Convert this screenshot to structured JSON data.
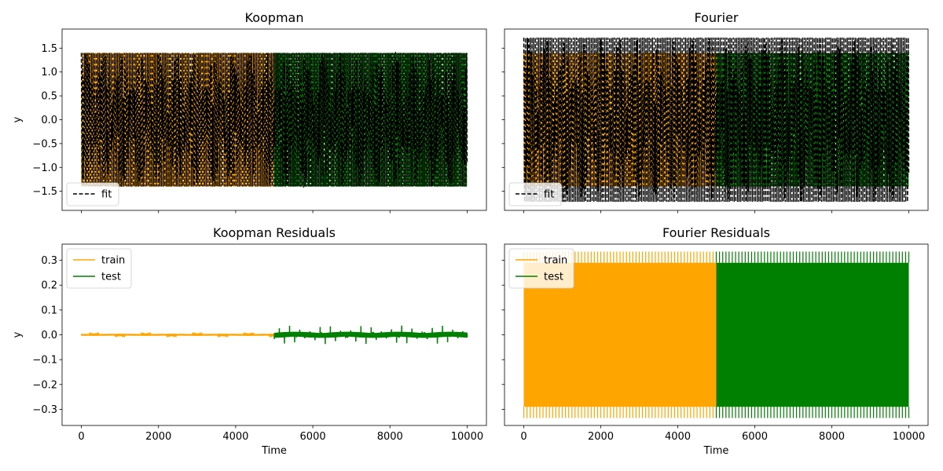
{
  "colors": {
    "train": "#ffa500",
    "test": "#008000",
    "fit": "#000000"
  },
  "chart_data": [
    {
      "id": "koopman",
      "type": "line",
      "title": "Koopman",
      "xlabel": "",
      "ylabel": "y",
      "xlim": [
        -500,
        10500
      ],
      "ylim": [
        -1.9,
        1.9
      ],
      "xticks": [
        0,
        2000,
        4000,
        6000,
        8000,
        10000
      ],
      "show_xticklabels": false,
      "yticks": [
        -1.5,
        -1.0,
        -0.5,
        0.0,
        0.5,
        1.0,
        1.5
      ],
      "ytick_labels": [
        "−1.5",
        "−1.0",
        "−0.5",
        "0.0",
        "0.5",
        "1.0",
        "1.5"
      ],
      "legend": {
        "position": "lower-left",
        "entries": [
          {
            "label": "fit",
            "style": "dashed",
            "color": "#000000"
          }
        ]
      },
      "series": [
        {
          "role": "train",
          "x_range": [
            0,
            5000
          ],
          "amplitude": 1.4,
          "style": "dashed",
          "color": "#ffa500"
        },
        {
          "role": "test",
          "x_range": [
            5000,
            10000
          ],
          "amplitude": 1.4,
          "style": "dashed",
          "color": "#008000"
        },
        {
          "name": "fit",
          "x_range": [
            0,
            10000
          ],
          "amplitude": 1.4,
          "style": "dashed",
          "color": "#000000"
        }
      ]
    },
    {
      "id": "fourier",
      "type": "line",
      "title": "Fourier",
      "xlabel": "",
      "ylabel": "",
      "xlim": [
        -500,
        10500
      ],
      "ylim": [
        -1.9,
        1.9
      ],
      "xticks": [
        0,
        2000,
        4000,
        6000,
        8000,
        10000
      ],
      "show_xticklabels": false,
      "yticks": [
        -1.5,
        -1.0,
        -0.5,
        0.0,
        0.5,
        1.0,
        1.5
      ],
      "show_yticklabels": false,
      "legend": {
        "position": "lower-left",
        "entries": [
          {
            "label": "fit",
            "style": "dashed",
            "color": "#000000"
          }
        ]
      },
      "series": [
        {
          "role": "train",
          "x_range": [
            0,
            5000
          ],
          "amplitude": 1.4,
          "style": "dashed",
          "color": "#ffa500"
        },
        {
          "role": "test",
          "x_range": [
            5000,
            10000
          ],
          "amplitude": 1.4,
          "style": "dashed",
          "color": "#008000"
        },
        {
          "name": "fit",
          "x_range": [
            0,
            10000
          ],
          "amplitude": 1.72,
          "style": "dashed",
          "color": "#000000"
        }
      ]
    },
    {
      "id": "koopman-residuals",
      "type": "line",
      "title": "Koopman Residuals",
      "xlabel": "Time",
      "ylabel": "y",
      "xlim": [
        -500,
        10500
      ],
      "ylim": [
        -0.365,
        0.365
      ],
      "xticks": [
        0,
        2000,
        4000,
        6000,
        8000,
        10000
      ],
      "yticks": [
        -0.3,
        -0.2,
        -0.1,
        0.0,
        0.1,
        0.2,
        0.3
      ],
      "ytick_labels": [
        "−0.3",
        "−0.2",
        "−0.1",
        "0.0",
        "0.1",
        "0.2",
        "0.3"
      ],
      "legend": {
        "position": "upper-left",
        "entries": [
          {
            "label": "train",
            "style": "solid",
            "color": "#ffa500"
          },
          {
            "label": "test",
            "style": "solid",
            "color": "#008000"
          }
        ]
      },
      "series": [
        {
          "name": "train",
          "x_range": [
            0,
            5000
          ],
          "amplitude": 0.004,
          "style": "solid",
          "color": "#ffa500"
        },
        {
          "name": "test",
          "x_range": [
            5000,
            10000
          ],
          "amplitude": 0.012,
          "spike_amplitude": 0.025,
          "style": "solid",
          "color": "#008000"
        }
      ]
    },
    {
      "id": "fourier-residuals",
      "type": "line",
      "title": "Fourier Residuals",
      "xlabel": "Time",
      "ylabel": "",
      "xlim": [
        -500,
        10500
      ],
      "ylim": [
        -0.365,
        0.365
      ],
      "xticks": [
        0,
        2000,
        4000,
        6000,
        8000,
        10000
      ],
      "yticks": [
        -0.3,
        -0.2,
        -0.1,
        0.0,
        0.1,
        0.2,
        0.3
      ],
      "show_yticklabels": false,
      "legend": {
        "position": "upper-left",
        "entries": [
          {
            "label": "train",
            "style": "solid",
            "color": "#ffa500"
          },
          {
            "label": "test",
            "style": "solid",
            "color": "#008000"
          }
        ]
      },
      "series": [
        {
          "name": "train",
          "x_range": [
            0,
            5000
          ],
          "band": [
            -0.29,
            0.29
          ],
          "spike_max": 0.335,
          "style": "solid",
          "color": "#ffa500"
        },
        {
          "name": "test",
          "x_range": [
            5000,
            10000
          ],
          "band": [
            -0.29,
            0.29
          ],
          "spike_max": 0.335,
          "style": "solid",
          "color": "#008000"
        }
      ]
    }
  ]
}
